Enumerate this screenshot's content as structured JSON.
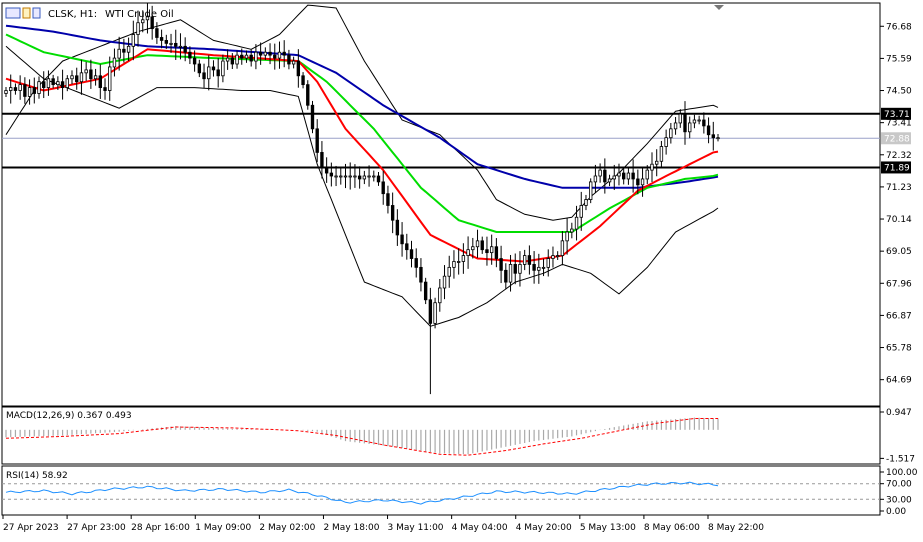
{
  "header": {
    "symbol": "CLSK, H1:",
    "description": "WTI Crude Oil"
  },
  "colors": {
    "background": "#ffffff",
    "frame": "#000000",
    "candle_up": "#ffffff",
    "candle_down": "#000000",
    "bollinger": "#000000",
    "ma_fast": "#ff0000",
    "ma_mid": "#00dd00",
    "ma_slow": "#0000aa",
    "macd_hist": "#a9a9a9",
    "macd_signal": "#ff0000",
    "rsi_line": "#1e90ff",
    "level_line": "#000000",
    "price_tag_bg": "#c8c8c8"
  },
  "chart_data": [
    {
      "type": "candlestick",
      "panel": "price",
      "yaxis_ticks": [
        "76.68",
        "75.59",
        "74.50",
        "73.41",
        "72.32",
        "71.23",
        "70.14",
        "69.05",
        "67.96",
        "66.87",
        "65.78",
        "64.69"
      ],
      "ylim": [
        64.0,
        77.3
      ],
      "x_tick_labels": [
        "27 Apr 2023",
        "27 Apr 23:00",
        "28 Apr 16:00",
        "1 May 09:00",
        "2 May 02:00",
        "2 May 18:00",
        "3 May 11:00",
        "4 May 04:00",
        "4 May 20:00",
        "5 May 13:00",
        "8 May 06:00",
        "8 May 22:00"
      ],
      "levels": [
        {
          "label": "73.71",
          "value": 73.71,
          "highlight": true
        },
        {
          "label": "72.88",
          "value": 72.88,
          "highlight": false
        },
        {
          "label": "71.89",
          "value": 71.89,
          "highlight": true
        }
      ],
      "close": [
        74.5,
        74.6,
        74.5,
        74.7,
        74.3,
        74.6,
        74.4,
        74.8,
        74.6,
        74.9,
        74.7,
        74.8,
        74.6,
        74.9,
        75.0,
        74.8,
        75.1,
        75.2,
        74.9,
        75.0,
        74.6,
        74.5,
        75.3,
        75.6,
        75.9,
        75.8,
        76.0,
        76.4,
        76.8,
        76.9,
        77.0,
        76.6,
        76.3,
        76.2,
        76.1,
        76.1,
        76.0,
        76.0,
        75.8,
        75.6,
        75.4,
        75.1,
        74.9,
        75.3,
        75.2,
        75.0,
        75.5,
        75.6,
        75.4,
        75.7,
        75.6,
        75.7,
        75.5,
        75.8,
        75.7,
        75.8,
        75.7,
        75.6,
        75.8,
        75.7,
        75.4,
        75.5,
        75.0,
        74.7,
        74.0,
        73.2,
        72.4,
        71.9,
        71.7,
        71.6,
        71.6,
        71.6,
        71.6,
        71.6,
        71.6,
        71.5,
        71.6,
        71.6,
        71.6,
        71.4,
        71.0,
        70.6,
        70.1,
        69.6,
        69.3,
        69.1,
        68.8,
        68.5,
        68.0,
        67.4,
        66.6,
        67.3,
        67.8,
        68.2,
        68.5,
        68.7,
        68.7,
        68.9,
        69.1,
        69.2,
        69.4,
        69.1,
        69.0,
        69.2,
        68.8,
        68.4,
        68.0,
        68.6,
        68.3,
        68.6,
        68.9,
        68.6,
        68.4,
        68.5,
        68.5,
        68.8,
        68.9,
        68.9,
        69.4,
        69.7,
        69.8,
        70.2,
        70.6,
        70.8,
        71.4,
        71.6,
        71.8,
        71.4,
        71.5,
        71.6,
        71.7,
        71.5,
        71.7,
        71.5,
        71.3,
        71.5,
        71.8,
        72.0,
        72.1,
        72.6,
        72.9,
        73.2,
        73.4,
        73.7,
        73.1,
        73.4,
        73.5,
        73.5,
        73.3,
        73.0,
        72.9,
        72.9
      ],
      "bollinger_upper_points": [
        [
          0,
          73.0
        ],
        [
          6,
          74.5
        ],
        [
          12,
          75.5
        ],
        [
          28,
          76.5
        ],
        [
          37,
          76.9
        ],
        [
          44,
          76.2
        ],
        [
          52,
          75.9
        ],
        [
          58,
          76.4
        ],
        [
          64,
          77.4
        ],
        [
          70,
          77.3
        ],
        [
          76,
          75.5
        ],
        [
          84,
          73.5
        ],
        [
          92,
          73.0
        ],
        [
          100,
          71.8
        ],
        [
          104,
          70.8
        ],
        [
          110,
          70.3
        ],
        [
          116,
          70.1
        ],
        [
          120,
          70.2
        ],
        [
          124,
          70.9
        ],
        [
          130,
          71.7
        ],
        [
          136,
          72.7
        ],
        [
          142,
          73.8
        ],
        [
          150,
          74.0
        ],
        [
          157,
          73.5
        ]
      ],
      "bollinger_lower_points": [
        [
          0,
          76.0
        ],
        [
          8,
          74.9
        ],
        [
          16,
          74.4
        ],
        [
          24,
          73.9
        ],
        [
          32,
          74.6
        ],
        [
          40,
          74.6
        ],
        [
          50,
          74.5
        ],
        [
          56,
          74.5
        ],
        [
          62,
          74.3
        ],
        [
          66,
          72.0
        ],
        [
          72,
          69.6
        ],
        [
          76,
          68.0
        ],
        [
          84,
          67.5
        ],
        [
          90,
          66.5
        ],
        [
          96,
          66.8
        ],
        [
          102,
          67.3
        ],
        [
          108,
          68.0
        ],
        [
          114,
          68.3
        ],
        [
          118,
          68.6
        ],
        [
          124,
          68.3
        ],
        [
          130,
          67.6
        ],
        [
          136,
          68.5
        ],
        [
          142,
          69.7
        ],
        [
          150,
          70.4
        ],
        [
          157,
          71.2
        ]
      ],
      "ma_fast_points": [
        [
          0,
          74.9
        ],
        [
          8,
          74.5
        ],
        [
          20,
          74.9
        ],
        [
          30,
          75.9
        ],
        [
          44,
          75.7
        ],
        [
          62,
          75.5
        ],
        [
          66,
          74.8
        ],
        [
          72,
          73.2
        ],
        [
          80,
          71.8
        ],
        [
          90,
          69.6
        ],
        [
          100,
          68.8
        ],
        [
          110,
          68.7
        ],
        [
          118,
          68.9
        ],
        [
          126,
          69.9
        ],
        [
          134,
          71.1
        ],
        [
          140,
          71.6
        ],
        [
          150,
          72.4
        ],
        [
          157,
          72.6
        ]
      ],
      "ma_mid_points": [
        [
          0,
          76.4
        ],
        [
          8,
          75.8
        ],
        [
          20,
          75.4
        ],
        [
          30,
          75.7
        ],
        [
          44,
          75.6
        ],
        [
          62,
          75.5
        ],
        [
          68,
          74.8
        ],
        [
          78,
          73.2
        ],
        [
          88,
          71.2
        ],
        [
          96,
          70.1
        ],
        [
          104,
          69.7
        ],
        [
          112,
          69.7
        ],
        [
          120,
          69.7
        ],
        [
          128,
          70.5
        ],
        [
          136,
          71.2
        ],
        [
          144,
          71.5
        ],
        [
          150,
          71.6
        ],
        [
          157,
          71.9
        ]
      ],
      "ma_slow_points": [
        [
          0,
          76.7
        ],
        [
          10,
          76.5
        ],
        [
          20,
          76.2
        ],
        [
          30,
          76.0
        ],
        [
          44,
          75.9
        ],
        [
          62,
          75.7
        ],
        [
          70,
          75.1
        ],
        [
          80,
          74.0
        ],
        [
          92,
          72.9
        ],
        [
          100,
          72.0
        ],
        [
          110,
          71.5
        ],
        [
          118,
          71.2
        ],
        [
          126,
          71.2
        ],
        [
          134,
          71.2
        ],
        [
          144,
          71.4
        ],
        [
          152,
          71.6
        ],
        [
          157,
          71.8
        ]
      ]
    },
    {
      "type": "histogram",
      "panel": "macd",
      "indicator_label": "MACD(12,26,9) 0.367 0.493",
      "yaxis_ticks": [
        "0.947",
        "-1.517"
      ],
      "ylim": [
        -1.55,
        1.0
      ],
      "histogram_points": [
        [
          0,
          -0.4
        ],
        [
          12,
          -0.3
        ],
        [
          24,
          -0.1
        ],
        [
          36,
          0.2
        ],
        [
          48,
          0.05
        ],
        [
          58,
          0.0
        ],
        [
          62,
          0.0
        ],
        [
          66,
          -0.1
        ],
        [
          72,
          -0.6
        ],
        [
          82,
          -0.9
        ],
        [
          92,
          -1.25
        ],
        [
          98,
          -1.3
        ],
        [
          104,
          -1.0
        ],
        [
          112,
          -0.6
        ],
        [
          120,
          -0.35
        ],
        [
          128,
          0.1
        ],
        [
          136,
          0.45
        ],
        [
          146,
          0.65
        ],
        [
          152,
          0.6
        ],
        [
          157,
          0.4
        ]
      ],
      "signal_points": [
        [
          0,
          -0.45
        ],
        [
          12,
          -0.35
        ],
        [
          24,
          -0.2
        ],
        [
          36,
          0.15
        ],
        [
          48,
          0.1
        ],
        [
          58,
          0.0
        ],
        [
          62,
          -0.05
        ],
        [
          70,
          -0.3
        ],
        [
          80,
          -0.8
        ],
        [
          92,
          -1.3
        ],
        [
          98,
          -1.35
        ],
        [
          106,
          -1.1
        ],
        [
          114,
          -0.75
        ],
        [
          122,
          -0.45
        ],
        [
          130,
          -0.05
        ],
        [
          138,
          0.35
        ],
        [
          146,
          0.6
        ],
        [
          152,
          0.6
        ],
        [
          157,
          0.5
        ]
      ]
    },
    {
      "type": "line",
      "panel": "rsi",
      "indicator_label": "RSI(14) 58.92",
      "yaxis_ticks": [
        "100.00",
        "70.00",
        "30.00",
        "0.00"
      ],
      "ylim": [
        0,
        100
      ],
      "guide_levels": [
        70,
        30
      ],
      "rsi_points": [
        [
          0,
          48
        ],
        [
          8,
          52
        ],
        [
          14,
          44
        ],
        [
          22,
          56
        ],
        [
          30,
          62
        ],
        [
          38,
          52
        ],
        [
          46,
          56
        ],
        [
          54,
          48
        ],
        [
          60,
          54
        ],
        [
          66,
          40
        ],
        [
          72,
          22
        ],
        [
          80,
          28
        ],
        [
          88,
          20
        ],
        [
          96,
          34
        ],
        [
          104,
          50
        ],
        [
          112,
          48
        ],
        [
          120,
          44
        ],
        [
          126,
          54
        ],
        [
          132,
          64
        ],
        [
          138,
          70
        ],
        [
          144,
          72
        ],
        [
          150,
          68
        ],
        [
          157,
          60
        ]
      ]
    }
  ]
}
